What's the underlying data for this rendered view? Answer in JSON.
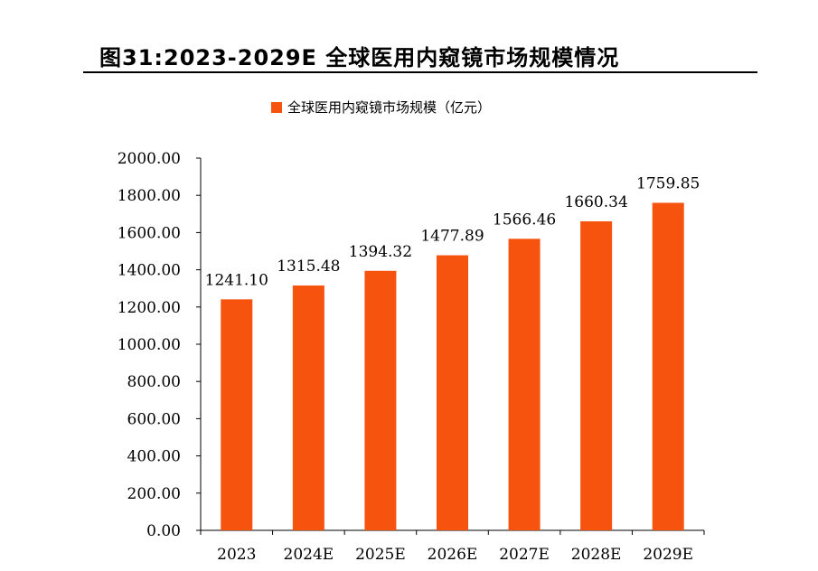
{
  "figure": {
    "title": "图31:2023-2029E 全球医用内窥镜市场规模情况"
  },
  "chart_data": {
    "type": "bar",
    "categories": [
      "2023",
      "2024E",
      "2025E",
      "2026E",
      "2027E",
      "2028E",
      "2029E"
    ],
    "series": [
      {
        "name": "全球医用内窥镜市场规模（亿元）",
        "values": [
          1241.1,
          1315.48,
          1394.32,
          1477.89,
          1566.46,
          1660.34,
          1759.85
        ],
        "labels": [
          "1241.10",
          "1315.48",
          "1394.32",
          "1477.89",
          "1566.46",
          "1660.34",
          "1759.85"
        ]
      }
    ],
    "ylim": [
      0,
      2000
    ],
    "y_ticks": [
      "0.00",
      "200.00",
      "400.00",
      "600.00",
      "800.00",
      "1000.00",
      "1200.00",
      "1400.00",
      "1600.00",
      "1800.00",
      "2000.00"
    ],
    "grid": false,
    "legend_position": "top-center",
    "bar_color": "#f6530f"
  }
}
